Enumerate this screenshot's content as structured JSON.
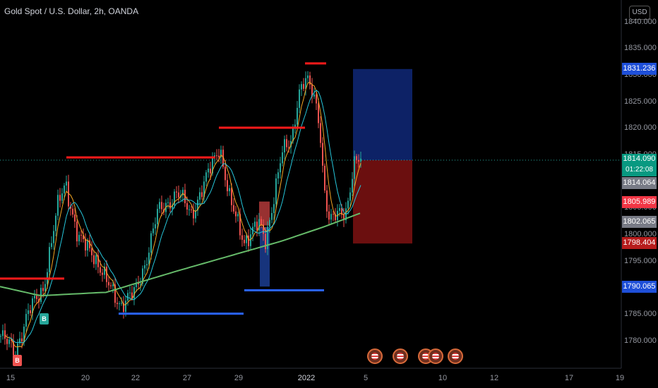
{
  "header": {
    "title": "Gold Spot / U.S. Dollar, 2h, OANDA",
    "currency": "USD"
  },
  "colors": {
    "background": "#000000",
    "up": "#26a69a",
    "down": "#ef5350",
    "ma_fast": "#f5a623",
    "ma_mid": "#26c6da",
    "ma_slow": "#66bb6a",
    "resistance": "#ff1a1a",
    "support": "#2962ff",
    "target_zone": "#0d2266",
    "stop_zone": "#6b0f0f"
  },
  "chart_data": {
    "type": "candlestick",
    "symbol": "Gold Spot / U.S. Dollar",
    "interval": "2h",
    "source": "OANDA",
    "ylim": [
      1776,
      1843
    ],
    "y_ticks": [
      "1840.000",
      "1835.000",
      "1830.000",
      "1825.000",
      "1820.000",
      "1815.000",
      "1810.000",
      "1805.000",
      "1800.000",
      "1795.000",
      "1790.000",
      "1785.000",
      "1780.000"
    ],
    "x_ticks": [
      "15",
      "20",
      "22",
      "27",
      "29",
      "2022",
      "5",
      "10",
      "12",
      "17",
      "19"
    ],
    "last_price": 1814.09,
    "countdown": "01:22:08",
    "price_tags": [
      {
        "value": "1831.236",
        "color": "#1e4fd8"
      },
      {
        "value": "1814.090",
        "sub": "01:22:08",
        "color": "#089981"
      },
      {
        "value": "1814.064",
        "color": "#787b86"
      },
      {
        "value": "1805.989",
        "color": "#f23645"
      },
      {
        "value": "1802.065",
        "color": "#787b86"
      },
      {
        "value": "1798.404",
        "color": "#b71c1c"
      },
      {
        "value": "1790.065",
        "color": "#1e4fd8"
      }
    ],
    "position": {
      "entry": 1814.09,
      "target": 1831.236,
      "stop": 1798.404
    },
    "signals": [
      {
        "label": "B"
      },
      {
        "label": "B"
      }
    ],
    "event_icons": 5
  }
}
